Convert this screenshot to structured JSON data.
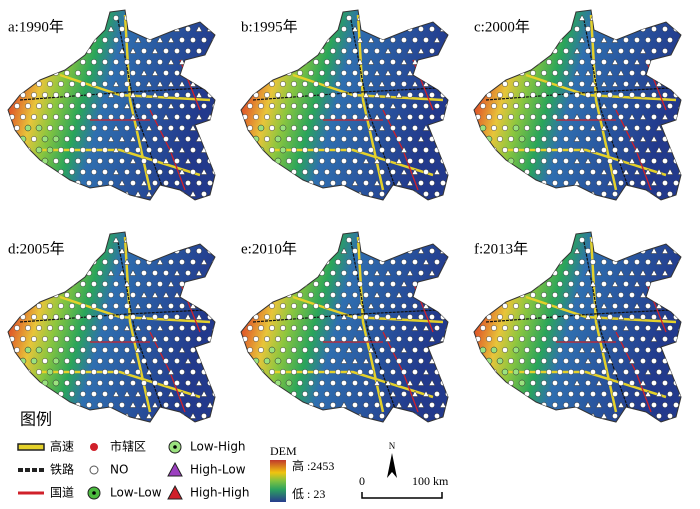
{
  "panels": [
    {
      "label": "a:1990年"
    },
    {
      "label": "b:1995年"
    },
    {
      "label": "c:2000年"
    },
    {
      "label": "d:2005年"
    },
    {
      "label": "e:2010年"
    },
    {
      "label": "f:2013年"
    }
  ],
  "legend": {
    "title": "图例",
    "items": [
      {
        "label": "高速"
      },
      {
        "label": "市辖区"
      },
      {
        "label": "Low-High"
      },
      {
        "label": "铁路"
      },
      {
        "label": "NO"
      },
      {
        "label": "High-Low"
      },
      {
        "label": "国道"
      },
      {
        "label": "Low-Low"
      },
      {
        "label": "High-High"
      }
    ]
  },
  "dem": {
    "title": "DEM",
    "high": "高 :2453",
    "low": "低 : 23"
  },
  "scale": {
    "north": "N",
    "zero": "0",
    "distance": "100 km"
  }
}
